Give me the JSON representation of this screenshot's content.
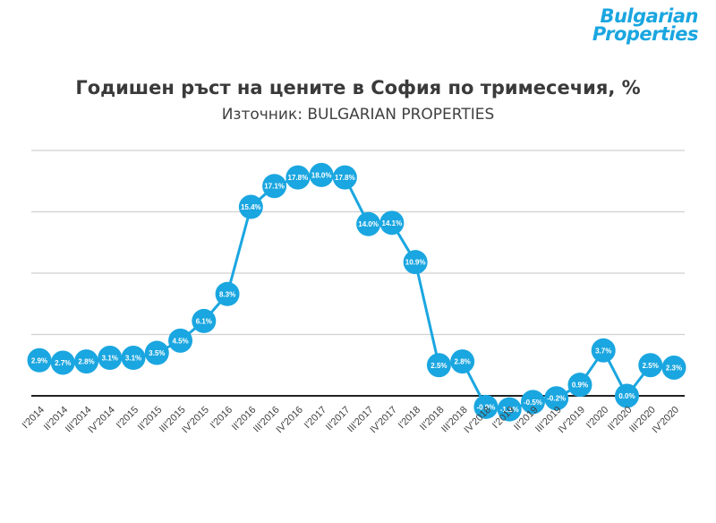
{
  "logo": {
    "line1": "Bulgarian",
    "line2": "Properties"
  },
  "header": {
    "title": "Годишен ръст на цените в София по тримесечия, %",
    "subtitle": "Източник: BULGARIAN PROPERTIES"
  },
  "colors": {
    "series": "#1aa6e0",
    "grid": "#d0d0d0",
    "zero_line": "#222222",
    "label_text": "#ffffff"
  },
  "chart_data": {
    "type": "line",
    "title": "Годишен ръст на цените в София по тримесечия, %",
    "subtitle": "Източник: BULGARIAN PROPERTIES",
    "xlabel": "",
    "ylabel": "",
    "grid": true,
    "y_axis_labels_shown": false,
    "ylim": [
      -3,
      20
    ],
    "categories": [
      "I'2014",
      "II'2014",
      "III'2014",
      "IV'2014",
      "I'2015",
      "II'2015",
      "III'2015",
      "IV'2015",
      "I'2016",
      "II'2016",
      "III'2016",
      "IV'2016",
      "I'2017",
      "II'2017",
      "III'2017",
      "IV'2017",
      "I'2018",
      "II'2018",
      "III'2018",
      "IV'2018",
      "I'2019",
      "II'2019",
      "III'2019",
      "IV'2019",
      "I'2020",
      "II'2020",
      "III'2020",
      "IV'2020"
    ],
    "values": [
      2.9,
      2.7,
      2.8,
      3.1,
      3.1,
      3.5,
      4.5,
      6.1,
      8.3,
      15.4,
      17.1,
      17.8,
      18.0,
      17.8,
      14.0,
      14.1,
      10.9,
      2.5,
      2.8,
      -0.9,
      -1.1,
      -0.5,
      -0.2,
      0.9,
      3.7,
      0.0,
      2.5,
      2.3
    ],
    "data_labels": [
      "2.9%",
      "2.7%",
      "2.8%",
      "3.1%",
      "3.1%",
      "3.5%",
      "4.5%",
      "6.1%",
      "8.3%",
      "15.4%",
      "17.1%",
      "17.8%",
      "18.0%",
      "17.8%",
      "14.0%",
      "14.1%",
      "10.9%",
      "2.5%",
      "2.8%",
      "-0.9%",
      "-1.1%",
      "-0.5%",
      "-0.2%",
      "0.9%",
      "3.7%",
      "0.0%",
      "2.5%",
      "2.3%"
    ]
  }
}
